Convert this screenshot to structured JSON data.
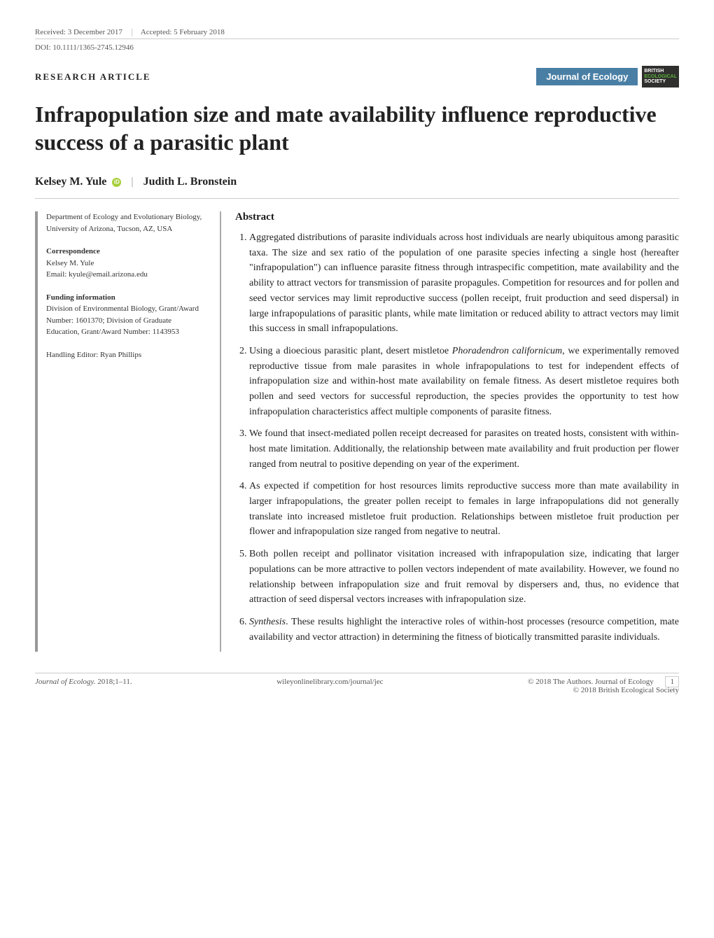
{
  "meta": {
    "received": "Received: 3 December 2017",
    "accepted": "Accepted: 5 February 2018",
    "doi": "DOI: 10.1111/1365-2745.12946"
  },
  "article_type": "RESEARCH ARTICLE",
  "journal_badge": "Journal of Ecology",
  "society_badge": {
    "line1": "BRITISH",
    "line2": "ECOLOGICAL",
    "line3": "SOCIETY"
  },
  "title": "Infrapopulation size and mate availability influence reproductive success of a parasitic plant",
  "authors": {
    "a1": "Kelsey M. Yule",
    "a2": "Judith L. Bronstein"
  },
  "affiliation": {
    "dept": "Department of Ecology and Evolutionary Biology, University of Arizona, Tucson, AZ, USA"
  },
  "correspondence": {
    "heading": "Correspondence",
    "name": "Kelsey M. Yule",
    "email": "Email: kyule@email.arizona.edu"
  },
  "funding": {
    "heading": "Funding information",
    "text": "Division of Environmental Biology, Grant/Award Number: 1601370; Division of Graduate Education, Grant/Award Number: 1143953"
  },
  "editor": "Handling Editor: Ryan Phillips",
  "abstract": {
    "heading": "Abstract",
    "items": [
      "Aggregated distributions of parasite individuals across host individuals are nearly ubiquitous among parasitic taxa. The size and sex ratio of the population of one parasite species infecting a single host (hereafter \"infrapopulation\") can influence parasite fitness through intraspecific competition, mate availability and the ability to attract vectors for transmission of parasite propagules. Competition for resources and for pollen and seed vector services may limit reproductive success (pollen receipt, fruit production and seed dispersal) in large infrapopulations of parasitic plants, while mate limitation or reduced ability to attract vectors may limit this success in small infrapopulations.",
      "Using a dioecious parasitic plant, desert mistletoe <em>Phoradendron californicum</em>, we experimentally removed reproductive tissue from male parasites in whole infrapopulations to test for independent effects of infrapopulation size and within-host mate availability on female fitness. As desert mistletoe requires both pollen and seed vectors for successful reproduction, the species provides the opportunity to test how infrapopulation characteristics affect multiple components of parasite fitness.",
      "We found that insect-mediated pollen receipt decreased for parasites on treated hosts, consistent with within-host mate limitation. Additionally, the relationship between mate availability and fruit production per flower ranged from neutral to positive depending on year of the experiment.",
      "As expected if competition for host resources limits reproductive success more than mate availability in larger infrapopulations, the greater pollen receipt to females in large infrapopulations did not generally translate into increased mistletoe fruit production. Relationships between mistletoe fruit production per flower and infrapopulation size ranged from negative to neutral.",
      "Both pollen receipt and pollinator visitation increased with infrapopulation size, indicating that larger populations can be more attractive to pollen vectors independent of mate availability. However, we found no relationship between infrapopulation size and fruit removal by dispersers and, thus, no evidence that attraction of seed dispersal vectors increases with infrapopulation size.",
      "<em>Synthesis</em>. These results highlight the interactive roles of within-host processes (resource competition, mate availability and vector attraction) in determining the fitness of biotically transmitted parasite individuals."
    ]
  },
  "footer": {
    "journal": "Journal of Ecology.",
    "year_pages": "2018;1–11.",
    "url": "wileyonlinelibrary.com/journal/jec",
    "copyright1": "© 2018 The Authors. Journal of Ecology",
    "copyright2": "© 2018 British Ecological Society",
    "pagenum": "1"
  },
  "colors": {
    "journal_badge_bg": "#4a7fa5",
    "society_badge_bg": "#30302e",
    "society_eco": "#5aaf3a",
    "orcid": "#a6ce39",
    "rule": "#cccccc",
    "text": "#1a1a1a"
  }
}
